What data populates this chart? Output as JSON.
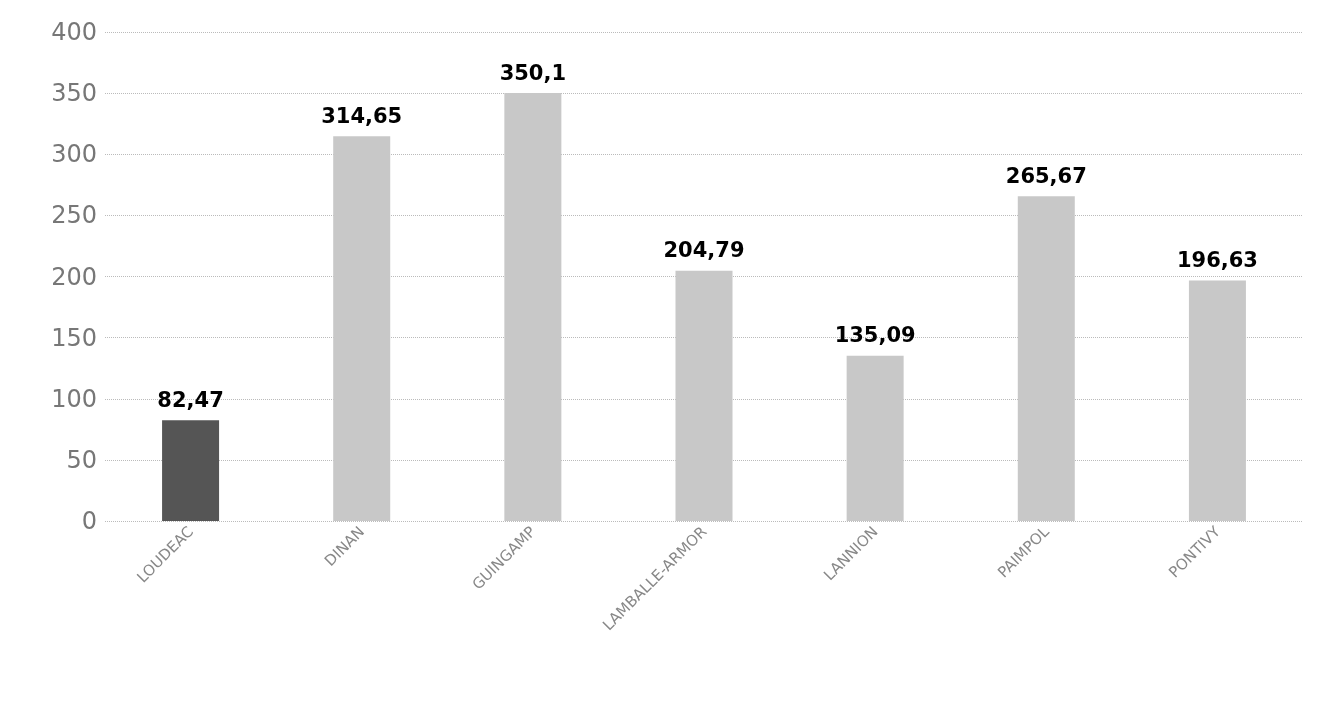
{
  "chart_data": {
    "type": "bar",
    "categories": [
      "LOUDEAC",
      "DINAN",
      "GUINGAMP",
      "LAMBALLE-ARMOR",
      "LANNION",
      "PAIMPOL",
      "PONTIVY"
    ],
    "values": [
      82.47,
      314.65,
      350.1,
      204.79,
      135.09,
      265.67,
      196.63
    ],
    "colors": [
      "#555555",
      "#c8c8c8",
      "#c8c8c8",
      "#c8c8c8",
      "#c8c8c8",
      "#c8c8c8",
      "#c8c8c8"
    ],
    "value_labels": [
      "82,47",
      "314,65",
      "350,1",
      "204,79",
      "135,09",
      "265,67",
      "196,63"
    ],
    "ylim": [
      0,
      400
    ],
    "yticks": [
      0,
      50,
      100,
      150,
      200,
      250,
      300,
      350,
      400
    ],
    "grid": "y"
  }
}
